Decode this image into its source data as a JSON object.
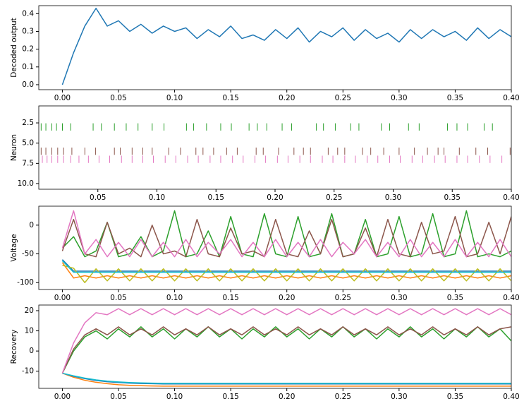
{
  "chart_data": [
    {
      "type": "line",
      "ylabel": "Decoded output",
      "x": [
        0,
        0.01,
        0.02,
        0.03,
        0.04,
        0.05,
        0.06,
        0.07,
        0.08,
        0.09,
        0.1,
        0.11,
        0.12,
        0.13,
        0.14,
        0.15,
        0.16,
        0.17,
        0.18,
        0.19,
        0.2,
        0.21,
        0.22,
        0.23,
        0.24,
        0.25,
        0.26,
        0.27,
        0.28,
        0.29,
        0.3,
        0.31,
        0.32,
        0.33,
        0.34,
        0.35,
        0.36,
        0.37,
        0.38,
        0.39,
        0.4
      ],
      "series": [
        {
          "color": "#1f77b4",
          "values": [
            0.0,
            0.18,
            0.33,
            0.43,
            0.33,
            0.36,
            0.3,
            0.34,
            0.29,
            0.33,
            0.3,
            0.32,
            0.26,
            0.31,
            0.27,
            0.33,
            0.26,
            0.28,
            0.25,
            0.31,
            0.26,
            0.32,
            0.24,
            0.3,
            0.27,
            0.32,
            0.25,
            0.31,
            0.26,
            0.29,
            0.24,
            0.31,
            0.26,
            0.31,
            0.27,
            0.3,
            0.25,
            0.32,
            0.26,
            0.31,
            0.27
          ]
        }
      ],
      "xlim": [
        -0.021,
        0.4
      ],
      "ylim": [
        -0.028,
        0.445
      ],
      "xticks": [
        {
          "value": 0,
          "label": "0.00"
        },
        0.05,
        {
          "value": 0.1,
          "label": "0.10"
        },
        0.15,
        {
          "value": 0.2,
          "label": "0.20"
        },
        0.25,
        {
          "value": 0.3,
          "label": "0.30"
        },
        0.35,
        {
          "value": 0.4,
          "label": "0.40"
        }
      ],
      "yticks": [
        {
          "value": 0,
          "label": "0.0"
        },
        0.1,
        0.2,
        0.3,
        0.4
      ]
    },
    {
      "type": "raster",
      "ylabel": "Neuron",
      "series": [
        {
          "color": "#2ca02c",
          "row": 3,
          "values": [
            0.002,
            0.006,
            0.011,
            0.015,
            0.02,
            0.027,
            0.046,
            0.053,
            0.064,
            0.074,
            0.084,
            0.096,
            0.106,
            0.125,
            0.131,
            0.142,
            0.154,
            0.163,
            0.178,
            0.185,
            0.193,
            0.206,
            0.214,
            0.235,
            0.241,
            0.251,
            0.264,
            0.271,
            0.29,
            0.297,
            0.313,
            0.322,
            0.346,
            0.354,
            0.363,
            0.377,
            0.384
          ]
        },
        {
          "color": "#8c564b",
          "row": 6,
          "values": [
            0.002,
            0.006,
            0.011,
            0.016,
            0.021,
            0.028,
            0.039,
            0.048,
            0.064,
            0.069,
            0.079,
            0.088,
            0.096,
            0.11,
            0.12,
            0.133,
            0.139,
            0.148,
            0.159,
            0.168,
            0.184,
            0.19,
            0.203,
            0.216,
            0.224,
            0.23,
            0.245,
            0.253,
            0.259,
            0.274,
            0.281,
            0.292,
            0.305,
            0.318,
            0.329,
            0.338,
            0.343,
            0.356,
            0.37,
            0.38,
            0.399
          ]
        },
        {
          "color": "#e377c2",
          "row": 7,
          "values": [
            0.003,
            0.007,
            0.011,
            0.016,
            0.021,
            0.027,
            0.034,
            0.042,
            0.051,
            0.06,
            0.07,
            0.079,
            0.088,
            0.097,
            0.107,
            0.116,
            0.126,
            0.135,
            0.145,
            0.154,
            0.164,
            0.173,
            0.183,
            0.192,
            0.202,
            0.211,
            0.221,
            0.23,
            0.24,
            0.249,
            0.259,
            0.268,
            0.278,
            0.287,
            0.297,
            0.306,
            0.316,
            0.325,
            0.335,
            0.344,
            0.354,
            0.363,
            0.373,
            0.382,
            0.392
          ]
        }
      ],
      "xlim": [
        0,
        0.4
      ],
      "ylim": [
        10.7,
        0.4
      ],
      "xticks": [
        0.05,
        {
          "value": 0.1,
          "label": "0.10"
        },
        0.15,
        {
          "value": 0.2,
          "label": "0.20"
        },
        0.25,
        {
          "value": 0.3,
          "label": "0.30"
        },
        0.35,
        {
          "value": 0.4,
          "label": "0.40"
        }
      ],
      "yticks": [
        2.5,
        {
          "value": 5,
          "label": "5.0"
        },
        7.5,
        {
          "value": 10,
          "label": "10.0"
        }
      ]
    },
    {
      "type": "line",
      "ylabel": "Voltage",
      "x": [
        0,
        0.01,
        0.02,
        0.03,
        0.04,
        0.05,
        0.06,
        0.07,
        0.08,
        0.09,
        0.1,
        0.11,
        0.12,
        0.13,
        0.14,
        0.15,
        0.16,
        0.17,
        0.18,
        0.19,
        0.2,
        0.21,
        0.22,
        0.23,
        0.24,
        0.25,
        0.26,
        0.27,
        0.28,
        0.29,
        0.3,
        0.31,
        0.32,
        0.33,
        0.34,
        0.35,
        0.36,
        0.37,
        0.38,
        0.39,
        0.4
      ],
      "series": [
        {
          "color": "#1f77b4",
          "values": [
            -60,
            -80,
            -80,
            -80,
            -80,
            -80,
            -80,
            -80,
            -80,
            -80,
            -80,
            -80,
            -80,
            -80,
            -80,
            -80,
            -80,
            -80,
            -80,
            -80,
            -80,
            -80,
            -80,
            -80,
            -80,
            -80,
            -80,
            -80,
            -80,
            -80,
            -80,
            -80,
            -80,
            -80,
            -80,
            -80,
            -80,
            -80,
            -80,
            -80,
            -80
          ]
        },
        {
          "color": "#ff7f0e",
          "values": [
            -65,
            -92,
            -88,
            -92,
            -88,
            -92,
            -88,
            -92,
            -88,
            -92,
            -88,
            -92,
            -88,
            -92,
            -88,
            -92,
            -88,
            -92,
            -88,
            -92,
            -88,
            -92,
            -88,
            -92,
            -88,
            -92,
            -88,
            -92,
            -88,
            -92,
            -88,
            -92,
            -88,
            -92,
            -88,
            -92,
            -88,
            -92,
            -88,
            -92,
            -88
          ]
        },
        {
          "color": "#bcbd22",
          "values": [
            -70,
            -75,
            -100,
            -76,
            -97,
            -76,
            -97,
            -76,
            -97,
            -76,
            -97,
            -76,
            -97,
            -76,
            -97,
            -76,
            -97,
            -76,
            -97,
            -76,
            -97,
            -76,
            -97,
            -76,
            -97,
            -76,
            -97,
            -76,
            -97,
            -76,
            -97,
            -76,
            -97,
            -76,
            -97,
            -76,
            -97,
            -76,
            -97,
            -76,
            -97
          ]
        },
        {
          "color": "#17becf",
          "values": [
            -62,
            -82,
            -82,
            -82,
            -82,
            -82,
            -82,
            -82,
            -82,
            -82,
            -82,
            -82,
            -82,
            -82,
            -82,
            -82,
            -82,
            -82,
            -82,
            -82,
            -82,
            -82,
            -82,
            -82,
            -82,
            -82,
            -82,
            -82,
            -82,
            -82,
            -82,
            -82,
            -82,
            -82,
            -82,
            -82,
            -82,
            -82,
            -82,
            -82,
            -82
          ]
        },
        {
          "color": "#2ca02c",
          "values": [
            -40,
            -20,
            -55,
            -45,
            5,
            -55,
            -50,
            -20,
            -55,
            -45,
            25,
            -55,
            -50,
            -10,
            -55,
            15,
            -50,
            -55,
            20,
            -50,
            -55,
            15,
            -55,
            -50,
            20,
            -55,
            -50,
            10,
            -55,
            -50,
            15,
            -55,
            -50,
            20,
            -55,
            -50,
            25,
            -55,
            -50,
            -55,
            -45
          ]
        },
        {
          "color": "#8c564b",
          "values": [
            -45,
            10,
            -50,
            -55,
            5,
            -50,
            -40,
            -55,
            0,
            -50,
            -45,
            -55,
            10,
            -50,
            -55,
            -5,
            -50,
            -45,
            -55,
            10,
            -50,
            -55,
            -10,
            -50,
            10,
            -55,
            -50,
            -5,
            -55,
            10,
            -50,
            -55,
            5,
            -50,
            -45,
            15,
            -55,
            -50,
            5,
            -50,
            15
          ]
        },
        {
          "color": "#e377c2",
          "values": [
            -40,
            25,
            -50,
            -25,
            -55,
            -30,
            -55,
            -25,
            -55,
            -30,
            -55,
            -25,
            -55,
            -30,
            -50,
            -25,
            -55,
            -30,
            -55,
            -25,
            -55,
            -30,
            -55,
            -25,
            -55,
            -30,
            -50,
            -25,
            -55,
            -30,
            -55,
            -25,
            -55,
            -30,
            -55,
            -25,
            -55,
            -30,
            -55,
            -25,
            -55
          ]
        }
      ],
      "xlim": [
        -0.021,
        0.4
      ],
      "ylim": [
        -112,
        33
      ],
      "xticks": [
        {
          "value": 0,
          "label": "0.00"
        },
        0.05,
        {
          "value": 0.1,
          "label": "0.10"
        },
        0.15,
        {
          "value": 0.2,
          "label": "0.20"
        },
        0.25,
        {
          "value": 0.3,
          "label": "0.30"
        },
        0.35,
        {
          "value": 0.4,
          "label": "0.40"
        }
      ],
      "yticks": [
        -100,
        -50,
        0
      ]
    },
    {
      "type": "line",
      "ylabel": "Recovery",
      "x": [
        0,
        0.01,
        0.02,
        0.03,
        0.04,
        0.05,
        0.06,
        0.07,
        0.08,
        0.09,
        0.1,
        0.11,
        0.12,
        0.13,
        0.14,
        0.15,
        0.16,
        0.17,
        0.18,
        0.19,
        0.2,
        0.21,
        0.22,
        0.23,
        0.24,
        0.25,
        0.26,
        0.27,
        0.28,
        0.29,
        0.3,
        0.31,
        0.32,
        0.33,
        0.34,
        0.35,
        0.36,
        0.37,
        0.38,
        0.39,
        0.4
      ],
      "series": [
        {
          "color": "#ff7f0e",
          "values": [
            -11,
            -13,
            -14.5,
            -15.5,
            -16.2,
            -16.7,
            -17,
            -17.2,
            -17.3,
            -17.4,
            -17.4,
            -17.4,
            -17.4,
            -17.4,
            -17.4,
            -17.4,
            -17.4,
            -17.4,
            -17.4,
            -17.4,
            -17.4,
            -17.4,
            -17.4,
            -17.4,
            -17.4,
            -17.4,
            -17.4,
            -17.4,
            -17.4,
            -17.4,
            -17.4,
            -17.4,
            -17.4,
            -17.4,
            -17.4,
            -17.4,
            -17.4,
            -17.4,
            -17.4,
            -17.4,
            -17.4
          ]
        },
        {
          "color": "#1f77b4",
          "values": [
            -11,
            -12.5,
            -13.7,
            -14.6,
            -15.2,
            -15.6,
            -15.9,
            -16.1,
            -16.2,
            -16.3,
            -16.3,
            -16.3,
            -16.3,
            -16.3,
            -16.3,
            -16.3,
            -16.3,
            -16.3,
            -16.3,
            -16.3,
            -16.3,
            -16.3,
            -16.3,
            -16.3,
            -16.3,
            -16.3,
            -16.3,
            -16.3,
            -16.3,
            -16.3,
            -16.3,
            -16.3,
            -16.3,
            -16.3,
            -16.3,
            -16.3,
            -16.3,
            -16.3,
            -16.3,
            -16.3,
            -16.3
          ]
        },
        {
          "color": "#17becf",
          "values": [
            -11,
            -12.3,
            -13.4,
            -14.3,
            -14.9,
            -15.3,
            -15.6,
            -15.8,
            -15.9,
            -16,
            -16,
            -16,
            -16,
            -16,
            -16,
            -16,
            -16,
            -16,
            -16,
            -16,
            -16,
            -16,
            -16,
            -16,
            -16,
            -16,
            -16,
            -16,
            -16,
            -16,
            -16,
            -16,
            -16,
            -16,
            -16,
            -16,
            -16,
            -16,
            -16,
            -16,
            -16
          ]
        },
        {
          "color": "#2ca02c",
          "values": [
            -11,
            0,
            7,
            10,
            6,
            11,
            7,
            12,
            7,
            11,
            6,
            11,
            7,
            12,
            7,
            11,
            6,
            11,
            7,
            12,
            7,
            11,
            6,
            11,
            7,
            12,
            7,
            11,
            6,
            11,
            7,
            12,
            7,
            11,
            6,
            11,
            7,
            12,
            7,
            11,
            5
          ]
        },
        {
          "color": "#8c564b",
          "values": [
            -11,
            1,
            8,
            11,
            8,
            12,
            8,
            11,
            8,
            12,
            8,
            11,
            8,
            12,
            8,
            11,
            8,
            12,
            8,
            11,
            8,
            12,
            8,
            11,
            8,
            12,
            8,
            11,
            8,
            12,
            8,
            11,
            8,
            12,
            8,
            11,
            8,
            12,
            8,
            11,
            12
          ]
        },
        {
          "color": "#e377c2",
          "values": [
            -11,
            4,
            14,
            19,
            18,
            21,
            18,
            21,
            18,
            21,
            18,
            21,
            18,
            21,
            18,
            21,
            18,
            21,
            18,
            21,
            18,
            21,
            18,
            21,
            18,
            21,
            18,
            21,
            18,
            21,
            18,
            21,
            18,
            21,
            18,
            21,
            18,
            21,
            18,
            21,
            18
          ]
        }
      ],
      "xlim": [
        -0.021,
        0.4
      ],
      "ylim": [
        -18.5,
        22.8
      ],
      "xticks": [
        {
          "value": 0,
          "label": "0.00"
        },
        0.05,
        {
          "value": 0.1,
          "label": "0.10"
        },
        0.15,
        {
          "value": 0.2,
          "label": "0.20"
        },
        0.25,
        {
          "value": 0.3,
          "label": "0.30"
        },
        0.35,
        {
          "value": 0.4,
          "label": "0.40"
        }
      ],
      "yticks": [
        -10,
        0,
        10,
        20
      ]
    }
  ]
}
